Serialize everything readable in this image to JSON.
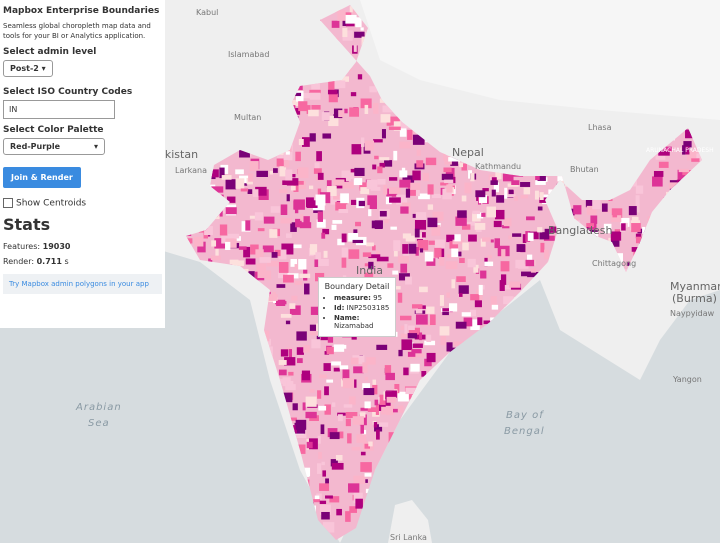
{
  "panel": {
    "title": "Mapbox Enterprise Boundaries",
    "description": "Seamless global choropleth map data and tools for your BI or Analytics application.",
    "admin_label": "Select admin level",
    "admin_value": "Post-2",
    "iso_label": "Select ISO Country Codes",
    "iso_value": "IN",
    "palette_label": "Select Color Palette",
    "palette_value": "Red-Purple",
    "button": "Join & Render",
    "checkbox": "Show Centroids",
    "stats_heading": "Stats",
    "features_label": "Features:",
    "features_value": "19030",
    "render_label": "Render:",
    "render_value": "0.711",
    "render_unit": "s",
    "link": "Try Mapbox admin polygons in your app"
  },
  "tooltip": {
    "title": "Boundary Detail",
    "rows": [
      {
        "key": "measure:",
        "value": "95"
      },
      {
        "key": "Id:",
        "value": "INP2503185"
      },
      {
        "key": "Name:",
        "value": "Nizamabad"
      }
    ]
  },
  "map_labels": [
    "Kabul",
    "Islamabad",
    "Multan",
    "Pakistan",
    "Larkana",
    "Nepal",
    "Kathmandu",
    "Lhasa",
    "Bhutan",
    "Bangladesh",
    "Chittagong",
    "India",
    "Myanmar",
    "(Burma)",
    "Naypyidaw",
    "Yangon",
    "Arabian",
    "Sea",
    "Bay of",
    "Bengal",
    "Sri Lanka",
    "ARUNACHAL PRADESH"
  ]
}
